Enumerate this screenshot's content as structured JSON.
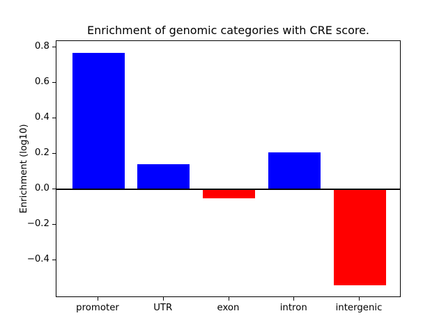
{
  "chart_data": {
    "type": "bar",
    "title": "Enrichment of genomic categories with CRE score.",
    "xlabel": "",
    "ylabel": "Enrichment (log10)",
    "categories": [
      "promoter",
      "UTR",
      "exon",
      "intron",
      "intergenic"
    ],
    "values": [
      0.77,
      0.14,
      -0.05,
      0.21,
      -0.54
    ],
    "bar_colors": [
      "#0000ff",
      "#0000ff",
      "#ff0000",
      "#0000ff",
      "#ff0000"
    ],
    "positive_color": "#0000ff",
    "negative_color": "#ff0000",
    "ylim": [
      -0.61,
      0.835
    ],
    "xlim": [
      -0.64,
      4.64
    ],
    "bar_width": 0.8,
    "yticks": [
      {
        "value": 0.8,
        "label": "0.8"
      },
      {
        "value": 0.6,
        "label": "0.6"
      },
      {
        "value": 0.4,
        "label": "0.4"
      },
      {
        "value": 0.2,
        "label": "0.2"
      },
      {
        "value": 0.0,
        "label": "0.0"
      },
      {
        "value": -0.2,
        "label": "−0.2"
      },
      {
        "value": -0.4,
        "label": "−0.4"
      }
    ],
    "zero_line": true,
    "grid": false,
    "background_color": "#ffffff",
    "axis_color": "#000000"
  }
}
